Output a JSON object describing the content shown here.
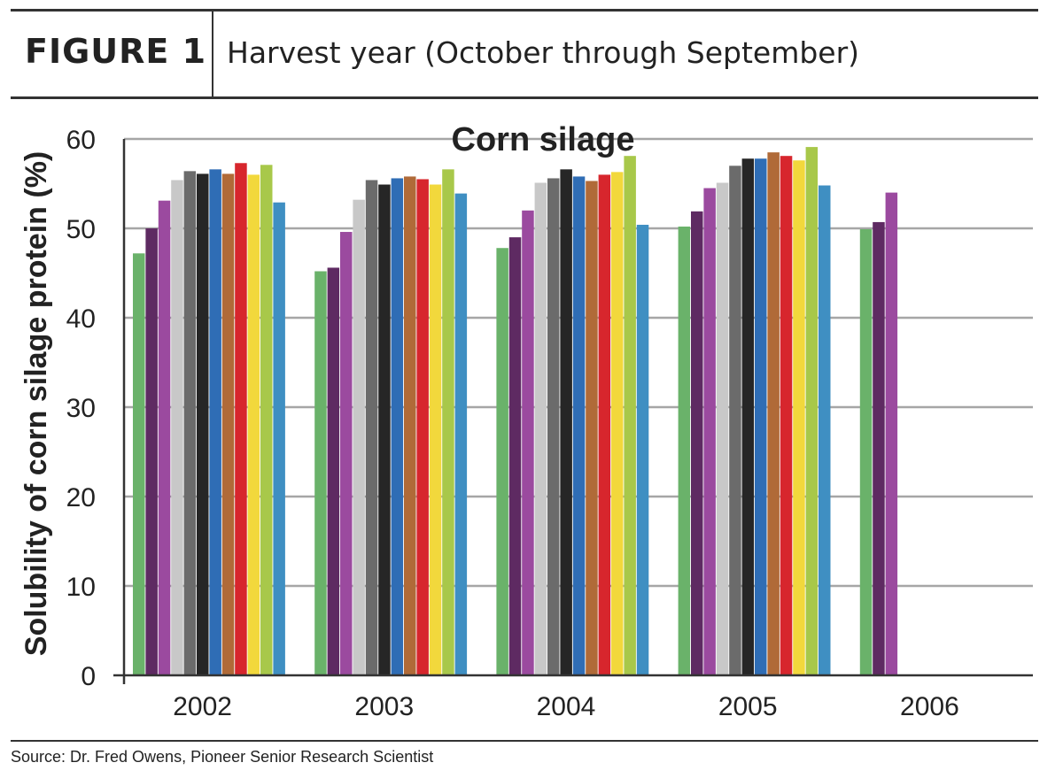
{
  "header": {
    "figure_label": "FIGURE 1",
    "caption": "Harvest year (October through September)"
  },
  "source": "Source: Dr. Fred Owens, Pioneer Senior Research Scientist",
  "colors": {
    "bars": [
      "#6ab26a",
      "#5e2a62",
      "#9b4a9f",
      "#c8c8c8",
      "#6b6b6b",
      "#262626",
      "#2f6db5",
      "#b06a38",
      "#d7262d",
      "#f2d83c",
      "#a8c84a",
      "#3f8fc2"
    ],
    "grid": "#a6a6a6",
    "axis": "#333333"
  },
  "chart_data": {
    "type": "bar",
    "title": "Corn silage",
    "xlabel": "",
    "ylabel": "Solubility of corn silage protein (%)",
    "ylim": [
      0,
      60
    ],
    "yticks": [
      0,
      10,
      20,
      30,
      40,
      50,
      60
    ],
    "grid": true,
    "categories": [
      "2002",
      "2003",
      "2004",
      "2005",
      "2006"
    ],
    "bar_groups": [
      [
        47.2,
        50.0,
        53.1,
        55.4,
        56.4,
        56.1,
        56.6,
        56.1,
        57.3,
        56.0,
        57.1,
        52.9
      ],
      [
        45.2,
        45.6,
        49.6,
        53.2,
        55.4,
        54.9,
        55.6,
        55.8,
        55.5,
        54.9,
        56.6,
        53.9
      ],
      [
        47.8,
        49.0,
        52.0,
        55.1,
        55.6,
        56.6,
        55.8,
        55.3,
        56.0,
        56.3,
        58.1,
        50.4
      ],
      [
        50.2,
        51.9,
        54.5,
        55.1,
        57.0,
        57.8,
        57.8,
        58.5,
        58.1,
        57.6,
        59.1,
        54.8
      ],
      [
        49.9,
        50.7,
        54.0
      ]
    ]
  }
}
